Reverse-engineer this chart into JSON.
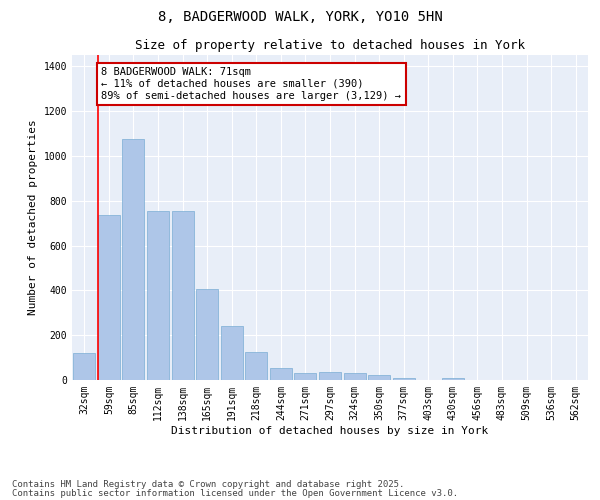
{
  "title1": "8, BADGERWOOD WALK, YORK, YO10 5HN",
  "title2": "Size of property relative to detached houses in York",
  "xlabel": "Distribution of detached houses by size in York",
  "ylabel": "Number of detached properties",
  "categories": [
    "32sqm",
    "59sqm",
    "85sqm",
    "112sqm",
    "138sqm",
    "165sqm",
    "191sqm",
    "218sqm",
    "244sqm",
    "271sqm",
    "297sqm",
    "324sqm",
    "350sqm",
    "377sqm",
    "403sqm",
    "430sqm",
    "456sqm",
    "483sqm",
    "509sqm",
    "536sqm",
    "562sqm"
  ],
  "values": [
    120,
    735,
    1075,
    755,
    755,
    405,
    240,
    125,
    55,
    30,
    35,
    30,
    22,
    10,
    0,
    10,
    0,
    0,
    0,
    0,
    0
  ],
  "bar_color": "#aec6e8",
  "bar_edgecolor": "#7aadd4",
  "red_line_index": 1,
  "annotation_text": "8 BADGERWOOD WALK: 71sqm\n← 11% of detached houses are smaller (390)\n89% of semi-detached houses are larger (3,129) →",
  "annotation_box_facecolor": "#ffffff",
  "annotation_box_edgecolor": "#cc0000",
  "ylim": [
    0,
    1450
  ],
  "yticks": [
    0,
    200,
    400,
    600,
    800,
    1000,
    1200,
    1400
  ],
  "bg_color": "#e8eef8",
  "footer1": "Contains HM Land Registry data © Crown copyright and database right 2025.",
  "footer2": "Contains public sector information licensed under the Open Government Licence v3.0.",
  "title1_fontsize": 10,
  "title2_fontsize": 9,
  "axis_label_fontsize": 8,
  "tick_fontsize": 7,
  "annotation_fontsize": 7.5,
  "footer_fontsize": 6.5
}
